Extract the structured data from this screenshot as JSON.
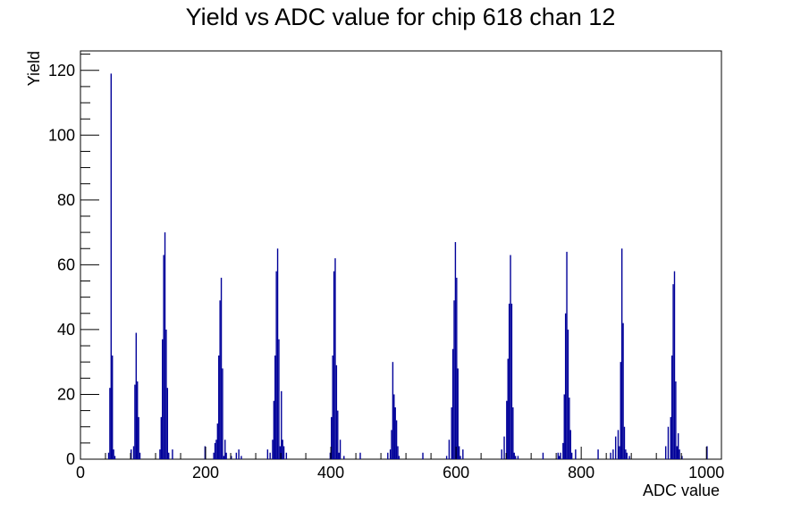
{
  "chart_data": {
    "type": "bar",
    "title": "Yield vs ADC value for chip 618 chan 12",
    "xlabel": "ADC value",
    "ylabel": "Yield",
    "xlim": [
      0,
      1024
    ],
    "ylim": [
      0,
      126
    ],
    "x_ticks": [
      0,
      200,
      400,
      600,
      800,
      1000
    ],
    "y_ticks": [
      0,
      20,
      40,
      60,
      80,
      100,
      120
    ],
    "grid": false,
    "legend": "none",
    "bar_color": "#000099",
    "x": [
      44,
      46,
      48,
      50,
      52,
      54,
      80,
      84,
      86,
      88,
      90,
      92,
      94,
      126,
      128,
      130,
      132,
      134,
      136,
      138,
      140,
      146,
      198,
      212,
      214,
      216,
      218,
      220,
      222,
      224,
      226,
      228,
      230,
      232,
      240,
      248,
      252,
      256,
      298,
      302,
      306,
      308,
      310,
      312,
      314,
      316,
      318,
      320,
      322,
      324,
      328,
      398,
      400,
      402,
      404,
      406,
      408,
      410,
      412,
      414,
      420,
      446,
      490,
      494,
      496,
      498,
      500,
      502,
      504,
      506,
      508,
      546,
      584,
      588,
      592,
      594,
      596,
      598,
      600,
      602,
      604,
      606,
      610,
      672,
      676,
      680,
      682,
      684,
      686,
      688,
      690,
      692,
      694,
      698,
      738,
      762,
      764,
      766,
      770,
      772,
      774,
      776,
      778,
      780,
      782,
      784,
      790,
      826,
      846,
      850,
      854,
      858,
      860,
      862,
      864,
      866,
      868,
      870,
      872,
      876,
      934,
      938,
      942,
      944,
      946,
      948,
      950,
      952,
      954,
      956,
      960,
      1000
    ],
    "values": [
      2,
      22,
      119,
      32,
      3,
      1,
      3,
      4,
      23,
      39,
      24,
      13,
      2,
      3,
      13,
      37,
      63,
      70,
      40,
      22,
      2,
      3,
      4,
      2,
      5,
      6,
      11,
      32,
      49,
      56,
      28,
      1,
      6,
      2,
      1,
      2,
      3,
      1,
      3,
      2,
      6,
      18,
      32,
      58,
      65,
      37,
      4,
      21,
      6,
      4,
      2,
      2,
      13,
      32,
      58,
      62,
      29,
      15,
      2,
      6,
      1,
      2,
      2,
      3,
      9,
      30,
      20,
      16,
      12,
      4,
      1,
      2,
      1,
      6,
      16,
      34,
      49,
      67,
      56,
      28,
      4,
      1,
      3,
      3,
      7,
      18,
      31,
      48,
      63,
      48,
      16,
      2,
      1,
      1,
      2,
      2,
      1,
      2,
      5,
      20,
      45,
      64,
      40,
      19,
      9,
      2,
      3,
      3,
      2,
      3,
      7,
      9,
      4,
      30,
      65,
      42,
      10,
      3,
      2,
      1,
      4,
      10,
      13,
      32,
      54,
      58,
      24,
      4,
      8,
      3,
      1,
      4
    ],
    "bin_width": 2
  }
}
